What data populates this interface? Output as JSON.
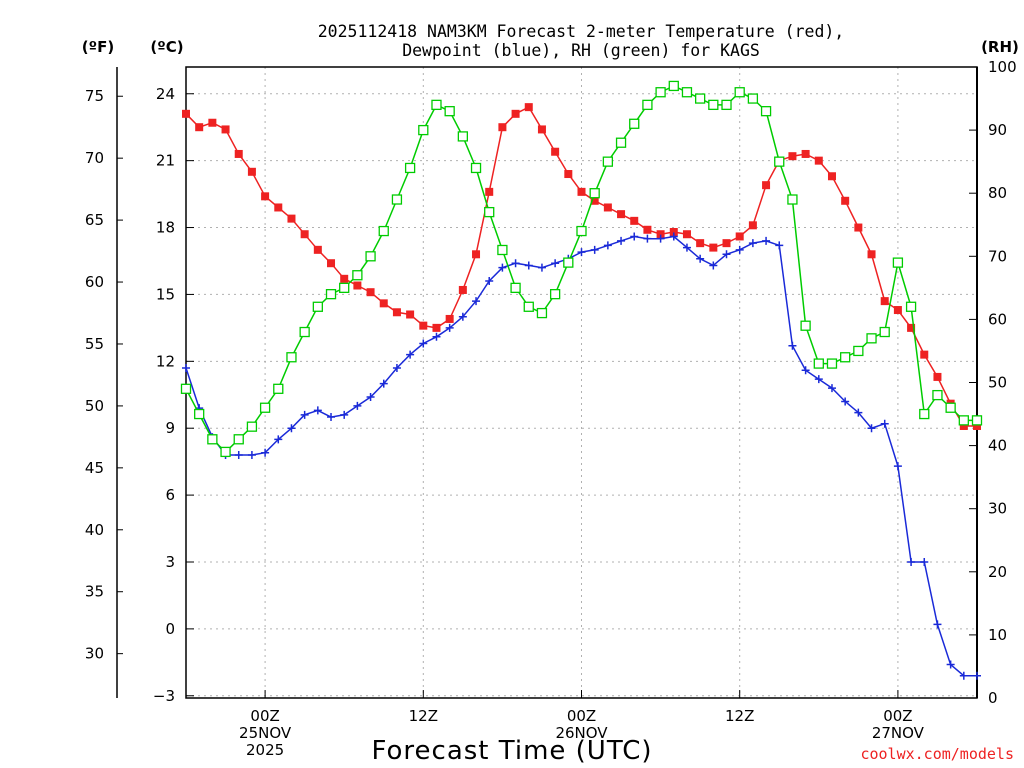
{
  "chart_data": {
    "type": "line",
    "title": "2025112418 NAM3KM Forecast 2-meter Temperature (red),",
    "title_line2": "Dewpoint (blue), RH (green) for KAGS",
    "xlabel": "Forecast Time (UTC)",
    "credit": "coolwx.com/models",
    "colors": {
      "temperature": "#ee2222",
      "dewpoint": "#1a2ad8",
      "rh": "#00cc00",
      "grid": "#b0b0b0"
    },
    "units": {
      "fahrenheit": "(ºF)",
      "celsius": "(ºC)",
      "rh": "(RH)"
    },
    "x_range_hours": [
      0,
      60
    ],
    "x_ticks": [
      {
        "hour": 6,
        "labels": [
          "00Z",
          "25NOV",
          "2025"
        ]
      },
      {
        "hour": 18,
        "labels": [
          "12Z"
        ]
      },
      {
        "hour": 30,
        "labels": [
          "00Z",
          "26NOV"
        ]
      },
      {
        "hour": 42,
        "labels": [
          "12Z"
        ]
      },
      {
        "hour": 54,
        "labels": [
          "00Z",
          "27NOV"
        ]
      }
    ],
    "celsius_axis": {
      "ylim": [
        -3.1,
        25.2
      ],
      "ticks": [
        -3,
        0,
        3,
        6,
        9,
        12,
        15,
        18,
        21,
        24
      ]
    },
    "fahrenheit_axis": {
      "ticks": [
        30,
        35,
        40,
        45,
        50,
        55,
        60,
        65,
        70,
        75
      ]
    },
    "rh_axis": {
      "ylim": [
        0,
        100
      ],
      "ticks": [
        0,
        10,
        20,
        30,
        40,
        50,
        60,
        70,
        80,
        90,
        100
      ]
    },
    "series": [
      {
        "name": "Temperature (°C)",
        "key": "temperature",
        "axis": "celsius",
        "marker": "filled-square",
        "x": [
          0,
          1,
          2,
          3,
          4,
          5,
          6,
          7,
          8,
          9,
          10,
          11,
          12,
          13,
          14,
          15,
          16,
          17,
          18,
          19,
          20,
          21,
          22,
          23,
          24,
          25,
          26,
          27,
          28,
          29,
          30,
          31,
          32,
          33,
          34,
          35,
          36,
          37,
          38,
          39,
          40,
          41,
          42,
          43,
          44,
          45,
          46,
          47,
          48,
          49,
          50,
          51,
          52,
          53,
          54,
          55,
          56,
          57,
          58,
          59,
          60
        ],
        "values": [
          23.1,
          22.5,
          22.7,
          22.4,
          21.3,
          20.5,
          19.4,
          18.9,
          18.4,
          17.7,
          17.0,
          16.4,
          15.7,
          15.4,
          15.1,
          14.6,
          14.2,
          14.1,
          13.6,
          13.5,
          13.9,
          15.2,
          16.8,
          19.6,
          22.5,
          23.1,
          23.4,
          22.4,
          21.4,
          20.4,
          19.6,
          19.2,
          18.9,
          18.6,
          18.3,
          17.9,
          17.7,
          17.8,
          17.7,
          17.3,
          17.1,
          17.3,
          17.6,
          18.1,
          19.9,
          21.0,
          21.2,
          21.3,
          21.0,
          20.3,
          19.2,
          18.0,
          16.8,
          14.7,
          14.3,
          13.5,
          12.3,
          11.3,
          10.1,
          9.1,
          9.1
        ]
      },
      {
        "name": "Dewpoint (°C)",
        "key": "dewpoint",
        "axis": "celsius",
        "marker": "plus",
        "x": [
          0,
          1,
          2,
          3,
          4,
          5,
          6,
          7,
          8,
          9,
          10,
          11,
          12,
          13,
          14,
          15,
          16,
          17,
          18,
          19,
          20,
          21,
          22,
          23,
          24,
          25,
          26,
          27,
          28,
          29,
          30,
          31,
          32,
          33,
          34,
          35,
          36,
          37,
          38,
          39,
          40,
          41,
          42,
          43,
          44,
          45,
          46,
          47,
          48,
          49,
          50,
          51,
          52,
          53,
          54,
          55,
          56,
          57,
          58,
          59,
          60
        ],
        "values": [
          11.7,
          9.9,
          8.6,
          7.8,
          7.8,
          7.8,
          7.9,
          8.5,
          9.0,
          9.6,
          9.8,
          9.5,
          9.6,
          10.0,
          10.4,
          11.0,
          11.7,
          12.3,
          12.8,
          13.1,
          13.5,
          14.0,
          14.7,
          15.6,
          16.2,
          16.4,
          16.3,
          16.2,
          16.4,
          16.6,
          16.9,
          17.0,
          17.2,
          17.4,
          17.6,
          17.5,
          17.5,
          17.6,
          17.1,
          16.6,
          16.3,
          16.8,
          17.0,
          17.3,
          17.4,
          17.2,
          12.7,
          11.6,
          11.2,
          10.8,
          10.2,
          9.7,
          9.0,
          9.2,
          7.3,
          3.0,
          3.0,
          0.2,
          -1.6,
          -2.1,
          -2.1
        ]
      },
      {
        "name": "Relative Humidity (%)",
        "key": "rh",
        "axis": "rh",
        "marker": "open-square",
        "x": [
          0,
          1,
          2,
          3,
          4,
          5,
          6,
          7,
          8,
          9,
          10,
          11,
          12,
          13,
          14,
          15,
          16,
          17,
          18,
          19,
          20,
          21,
          22,
          23,
          24,
          25,
          26,
          27,
          28,
          29,
          30,
          31,
          32,
          33,
          34,
          35,
          36,
          37,
          38,
          39,
          40,
          41,
          42,
          43,
          44,
          45,
          46,
          47,
          48,
          49,
          50,
          51,
          52,
          53,
          54,
          55,
          56,
          57,
          58,
          59,
          60
        ],
        "values": [
          49,
          45,
          41,
          39,
          41,
          43,
          46,
          49,
          54,
          58,
          62,
          64,
          65,
          67,
          70,
          74,
          79,
          84,
          90,
          94,
          93,
          89,
          84,
          77,
          71,
          65,
          62,
          61,
          64,
          69,
          74,
          80,
          85,
          88,
          91,
          94,
          96,
          97,
          96,
          95,
          94,
          94,
          96,
          95,
          93,
          85,
          79,
          59,
          53,
          53,
          54,
          55,
          57,
          58,
          69,
          62,
          45,
          48,
          46,
          44,
          44
        ]
      }
    ]
  }
}
